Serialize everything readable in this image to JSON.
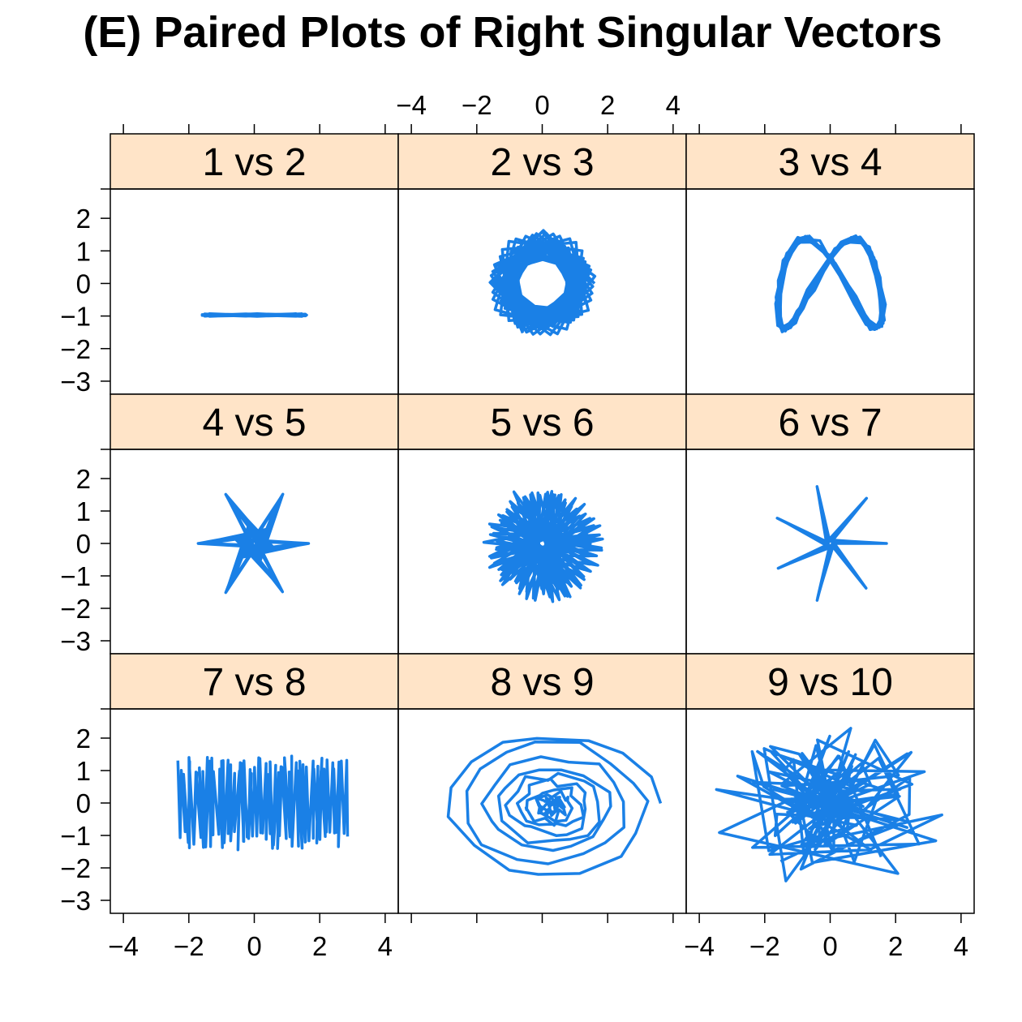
{
  "title": "(E) Paired Plots of Right Singular Vectors",
  "chart_data": {
    "type": "line",
    "layout": {
      "rows": 3,
      "cols": 3
    },
    "xlim": [
      -4.4,
      4.4
    ],
    "ylim": [
      -3.4,
      2.9
    ],
    "xticks": [
      -4,
      -2,
      0,
      2,
      4
    ],
    "yticks": [
      -3,
      -2,
      -1,
      0,
      1,
      2
    ],
    "xtick_labels": [
      "−4",
      "−2",
      "0",
      "2",
      "4"
    ],
    "ytick_labels": [
      "−3",
      "−2",
      "−1",
      "0",
      "1",
      "2"
    ],
    "line_color": "#1a80e6",
    "strip_color": "#ffe4c8",
    "panels": [
      {
        "label": "1 vs 2",
        "pattern": "flat",
        "params": {
          "a": 1.6,
          "b": 0.04,
          "yc": -0.97,
          "n": 60,
          "k": 1.3
        }
      },
      {
        "label": "2 vs 3",
        "pattern": "ring",
        "params": {
          "r1": 1.0,
          "r2": 1.6,
          "n": 170,
          "k": 1.55,
          "lobes": 9
        }
      },
      {
        "label": "3 vs 4",
        "pattern": "lissajous",
        "params": {
          "a": 1.6,
          "b": 1.4,
          "fx": 1.0,
          "fy": 2.0,
          "n": 170,
          "noise": 0.18
        }
      },
      {
        "label": "4 vs 5",
        "pattern": "star",
        "params": {
          "rin": 0.45,
          "rout": 1.75,
          "lobes": 11,
          "n": 200,
          "k": 2.618
        }
      },
      {
        "label": "5 vs 6",
        "pattern": "star",
        "params": {
          "rin": 0.3,
          "rout": 1.85,
          "lobes": 5,
          "n": 180,
          "k": 1.9
        }
      },
      {
        "label": "6 vs 7",
        "pattern": "star",
        "params": {
          "rin": 0.1,
          "rout": 1.8,
          "lobes": 7,
          "n": 200,
          "k": 0.4488
        }
      },
      {
        "label": "7 vs 8",
        "pattern": "zigzag",
        "params": {
          "x0": -2.3,
          "x1": 2.8,
          "amp": 1.45,
          "n": 110
        }
      },
      {
        "label": "8 vs 9",
        "pattern": "spiral",
        "params": {
          "cx": 0.3,
          "cy": -0.1,
          "rmax": 3.2,
          "n": 160,
          "noise": 0.35
        }
      },
      {
        "label": "9 vs 10",
        "pattern": "wander",
        "params": {
          "cx": 0.0,
          "cy": 0.0,
          "rx": 3.9,
          "ry": 2.6,
          "n": 170
        }
      }
    ]
  }
}
